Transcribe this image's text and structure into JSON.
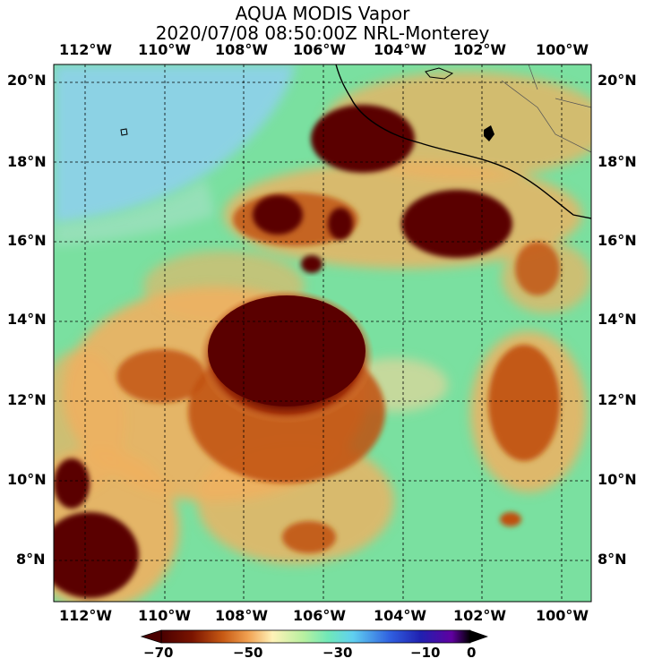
{
  "title": {
    "line1": "AQUA MODIS Vapor",
    "line2": "2020/07/08 08:50:00Z NRL-Monterey"
  },
  "longitude_labels": [
    "112°W",
    "110°W",
    "108°W",
    "106°W",
    "104°W",
    "102°W",
    "100°W"
  ],
  "latitude_labels": [
    "20°N",
    "18°N",
    "16°N",
    "14°N",
    "12°N",
    "10°N",
    "8°N"
  ],
  "colorbar": {
    "ticks": [
      "−70",
      "−50",
      "−30",
      "−10",
      "0"
    ],
    "stops": [
      "#4a0000",
      "#7a1400",
      "#c85a14",
      "#f0a050",
      "#fff2b8",
      "#b8f0a0",
      "#70e8b8",
      "#60d0f0",
      "#3060e0",
      "#2020b0",
      "#6000a0",
      "#000000"
    ]
  },
  "map_colors": {
    "background": "#7ae0a0",
    "clear_air": "#90d0f0",
    "cloud_edge": "#f0b060",
    "cloud_mid": "#c05010",
    "cloud_core": "#5a0000",
    "coast": "#000000"
  }
}
